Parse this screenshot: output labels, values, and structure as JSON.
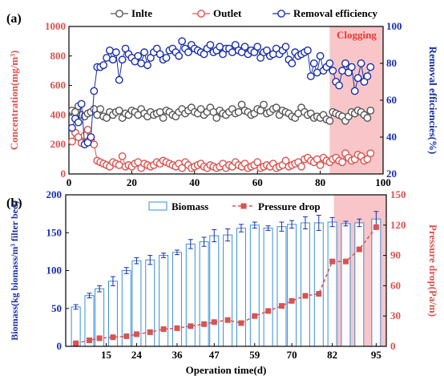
{
  "colors": {
    "inlet": "#555555",
    "outlet": "#d9534f",
    "removal": "#1a2fa8",
    "biomass": "#3a8fd8",
    "pressure": "#d9534f",
    "clogging_shade": "#f8c6c8",
    "clogging_text": "#e53935"
  },
  "chart_data": [
    {
      "type": "scatter",
      "panel_label": "(a)",
      "annotation": "Clogging",
      "shade_x": [
        83,
        100
      ],
      "xlim": [
        0,
        100
      ],
      "xticks": [
        0,
        20,
        40,
        60,
        80,
        100
      ],
      "ylabel_left": "Concentration(mg/m³)",
      "ylabel_right": "Removal efficiencies(%)",
      "ylim_left": [
        0,
        1000
      ],
      "yticks_left": [
        0,
        200,
        400,
        600,
        800,
        1000
      ],
      "ylim_right": [
        20,
        100
      ],
      "yticks_right": [
        20,
        40,
        60,
        80,
        100
      ],
      "legend_position": "top",
      "series": [
        {
          "name": "Inlte",
          "axis": "left",
          "x": [
            1,
            2,
            3,
            4,
            5,
            6,
            7,
            8,
            9,
            10,
            11,
            12,
            13,
            14,
            15,
            16,
            17,
            18,
            19,
            20,
            21,
            22,
            23,
            24,
            25,
            26,
            27,
            28,
            29,
            30,
            31,
            32,
            33,
            34,
            35,
            36,
            37,
            38,
            39,
            40,
            41,
            42,
            43,
            44,
            45,
            46,
            47,
            48,
            49,
            50,
            51,
            52,
            53,
            54,
            55,
            56,
            57,
            58,
            59,
            60,
            61,
            62,
            63,
            64,
            65,
            66,
            67,
            68,
            69,
            70,
            71,
            72,
            73,
            74,
            75,
            76,
            77,
            78,
            79,
            80,
            81,
            82,
            83,
            84,
            85,
            86,
            87,
            88,
            89,
            90,
            91,
            92,
            93,
            94,
            95,
            96
          ],
          "y": [
            430,
            420,
            460,
            400,
            390,
            410,
            420,
            440,
            400,
            440,
            390,
            380,
            420,
            400,
            420,
            430,
            380,
            410,
            400,
            430,
            420,
            400,
            440,
            410,
            390,
            420,
            400,
            410,
            420,
            380,
            430,
            420,
            400,
            390,
            420,
            440,
            410,
            430,
            450,
            420,
            410,
            440,
            400,
            420,
            450,
            420,
            380,
            430,
            410,
            400,
            420,
            440,
            410,
            420,
            470,
            430,
            420,
            400,
            410,
            440,
            430,
            470,
            410,
            420,
            440,
            450,
            400,
            430,
            420,
            410,
            390,
            380,
            410,
            450,
            420,
            400,
            410,
            380,
            390,
            380,
            400,
            370,
            360,
            420,
            410,
            400,
            390,
            360,
            390,
            420,
            410,
            430,
            420,
            400,
            380,
            430
          ]
        },
        {
          "name": "Outlet",
          "axis": "left",
          "x": [
            1,
            2,
            3,
            4,
            5,
            6,
            7,
            8,
            9,
            10,
            11,
            12,
            13,
            14,
            15,
            16,
            17,
            18,
            19,
            20,
            21,
            22,
            23,
            24,
            25,
            26,
            27,
            28,
            29,
            30,
            31,
            32,
            33,
            34,
            35,
            36,
            37,
            38,
            39,
            40,
            41,
            42,
            43,
            44,
            45,
            46,
            47,
            48,
            49,
            50,
            51,
            52,
            53,
            54,
            55,
            56,
            57,
            58,
            59,
            60,
            61,
            62,
            63,
            64,
            65,
            66,
            67,
            68,
            69,
            70,
            71,
            72,
            73,
            74,
            75,
            76,
            77,
            78,
            79,
            80,
            81,
            82,
            83,
            84,
            85,
            86,
            87,
            88,
            89,
            90,
            91,
            92,
            93,
            94,
            95,
            96
          ],
          "y": [
            220,
            280,
            250,
            210,
            260,
            300,
            230,
            200,
            90,
            80,
            70,
            60,
            50,
            80,
            70,
            60,
            120,
            50,
            60,
            50,
            70,
            80,
            40,
            70,
            60,
            50,
            60,
            80,
            70,
            90,
            80,
            70,
            60,
            50,
            70,
            40,
            80,
            60,
            40,
            50,
            60,
            70,
            50,
            40,
            60,
            50,
            40,
            50,
            70,
            40,
            60,
            50,
            80,
            60,
            50,
            70,
            40,
            50,
            60,
            80,
            40,
            50,
            60,
            50,
            70,
            40,
            50,
            60,
            90,
            50,
            60,
            70,
            80,
            50,
            100,
            110,
            90,
            80,
            100,
            60,
            110,
            90,
            80,
            100,
            110,
            90,
            80,
            140,
            110,
            90,
            100,
            130,
            120,
            90,
            100,
            140
          ]
        },
        {
          "name": "Removal efficiency",
          "axis": "right",
          "x": [
            1,
            2,
            3,
            4,
            5,
            6,
            7,
            8,
            9,
            10,
            11,
            12,
            13,
            14,
            15,
            16,
            17,
            18,
            19,
            20,
            21,
            22,
            23,
            24,
            25,
            26,
            27,
            28,
            29,
            30,
            31,
            32,
            33,
            34,
            35,
            36,
            37,
            38,
            39,
            40,
            41,
            42,
            43,
            44,
            45,
            46,
            47,
            48,
            49,
            50,
            51,
            52,
            53,
            54,
            55,
            56,
            57,
            58,
            59,
            60,
            61,
            62,
            63,
            64,
            65,
            66,
            67,
            68,
            69,
            70,
            71,
            72,
            73,
            74,
            75,
            76,
            77,
            78,
            79,
            80,
            81,
            82,
            83,
            84,
            85,
            86,
            87,
            88,
            89,
            90,
            91,
            92,
            93,
            94,
            95,
            96
          ],
          "y": [
            45,
            50,
            48,
            58,
            36,
            37,
            40,
            65,
            78,
            78,
            79,
            83,
            87,
            82,
            86,
            71,
            82,
            88,
            85,
            83,
            81,
            84,
            80,
            86,
            79,
            83,
            86,
            88,
            85,
            82,
            83,
            87,
            88,
            86,
            84,
            92,
            88,
            86,
            90,
            88,
            87,
            86,
            85,
            88,
            90,
            86,
            87,
            89,
            85,
            88,
            88,
            86,
            90,
            87,
            86,
            89,
            85,
            87,
            86,
            89,
            83,
            86,
            87,
            84,
            85,
            88,
            85,
            87,
            89,
            82,
            80,
            86,
            84,
            85,
            86,
            87,
            73,
            80,
            75,
            84,
            76,
            78,
            80,
            76,
            70,
            68,
            76,
            80,
            75,
            78,
            65,
            72,
            80,
            70,
            73,
            78
          ]
        }
      ]
    },
    {
      "type": "bar",
      "panel_label": "(b)",
      "shade_x": [
        82.5,
        96
      ],
      "xlabel": "Operation time(d)",
      "xtick_labels": [
        "15",
        "24",
        "36",
        "47",
        "59",
        "70",
        "82",
        "95"
      ],
      "xtick_values": [
        15,
        24,
        36,
        47,
        59,
        70,
        82,
        95
      ],
      "ylabel_left": "Biomass(kg biomass/m³ filter bed)",
      "ylabel_right": "Pressure drop(Pa/m)",
      "ylim_left": [
        0,
        200
      ],
      "yticks_left": [
        0,
        50,
        100,
        150,
        200
      ],
      "ylim_right": [
        0,
        150
      ],
      "yticks_right": [
        0,
        30,
        60,
        90,
        120,
        150
      ],
      "legend_position": "top",
      "days": [
        6,
        10,
        13,
        17,
        21,
        24,
        28,
        32,
        36,
        40,
        44,
        47,
        51,
        55,
        59,
        63,
        67,
        70,
        74,
        78,
        82,
        86,
        90,
        95
      ],
      "series": [
        {
          "name": "Biomass",
          "axis": "left",
          "values": [
            52,
            67,
            76,
            86,
            100,
            113,
            114,
            120,
            124,
            135,
            138,
            146,
            147,
            156,
            160,
            156,
            158,
            161,
            163,
            163,
            164,
            162,
            163,
            168
          ],
          "errors": [
            3,
            3,
            4,
            6,
            4,
            4,
            6,
            3,
            3,
            6,
            6,
            8,
            8,
            5,
            4,
            3,
            6,
            5,
            8,
            10,
            6,
            3,
            5,
            10
          ]
        },
        {
          "name": "Pressure drop",
          "axis": "right",
          "values": [
            3,
            6,
            8,
            9,
            10,
            12,
            14,
            17,
            18,
            20,
            22,
            24,
            26,
            23,
            30,
            35,
            40,
            45,
            50,
            52,
            84,
            84,
            96,
            118
          ]
        }
      ]
    }
  ]
}
